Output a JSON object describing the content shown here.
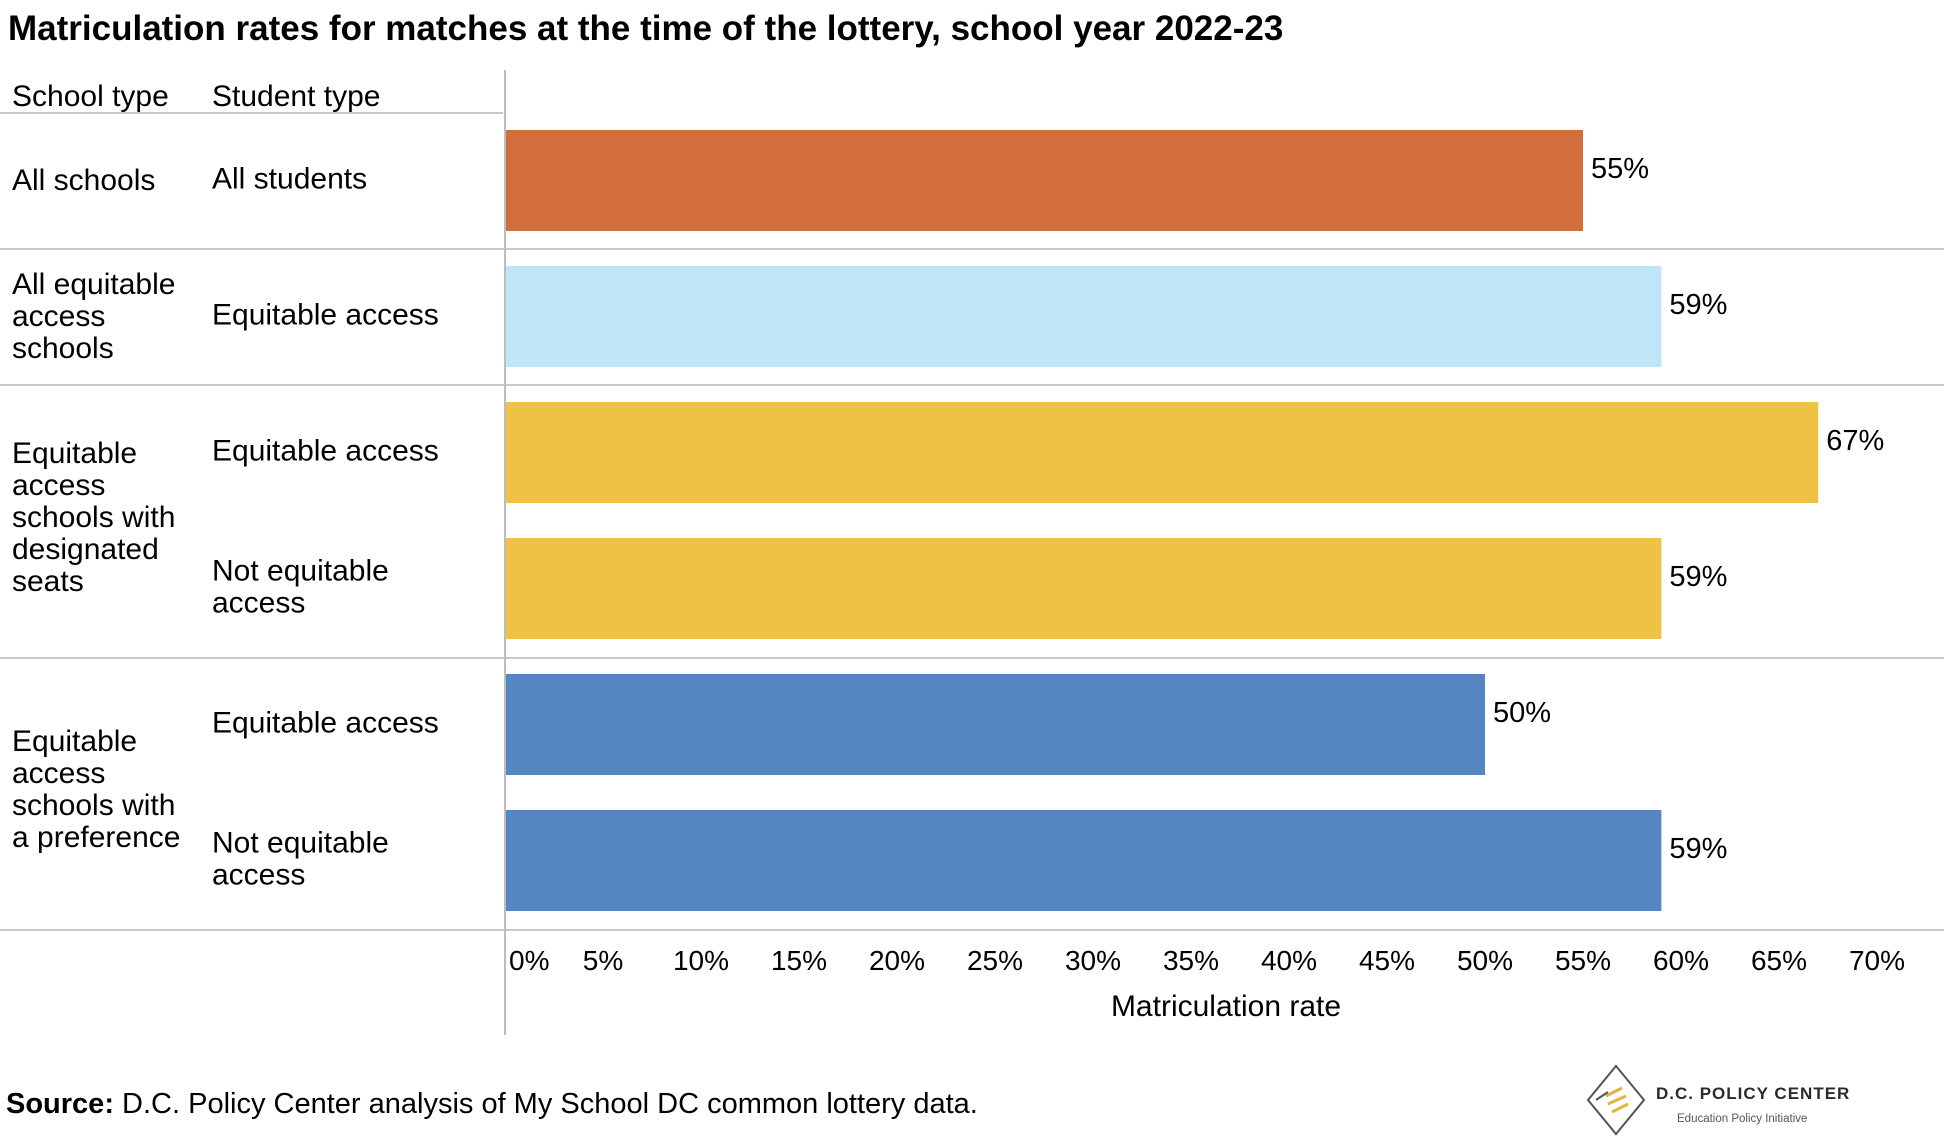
{
  "title": "Matriculation rates for matches at the time of the lottery, school year 2022-23",
  "headers": {
    "school_type": "School type",
    "student_type": "Student type"
  },
  "rows": [
    {
      "school_type": [
        "All schools"
      ],
      "student_type": [
        "All students"
      ]
    },
    {
      "school_type": [
        "All equitable",
        "access",
        "schools"
      ],
      "student_type": [
        "Equitable access"
      ]
    },
    {
      "school_type": [
        "Equitable",
        "access",
        "schools with",
        "designated",
        "seats"
      ],
      "student_type": [
        "Equitable access"
      ]
    },
    {
      "school_type": [],
      "student_type": [
        "Not equitable",
        "access"
      ]
    },
    {
      "school_type": [
        "Equitable",
        "access",
        "schools with",
        "a preference"
      ],
      "student_type": [
        "Equitable access"
      ]
    },
    {
      "school_type": [],
      "student_type": [
        "Not equitable",
        "access"
      ]
    }
  ],
  "chart_data": {
    "type": "bar",
    "orientation": "horizontal",
    "categories": [
      "All schools | All students",
      "All equitable access schools | Equitable access",
      "Equitable access schools with designated seats | Equitable access",
      "Equitable access schools with designated seats | Not equitable access",
      "Equitable access schools with a preference | Equitable access",
      "Equitable access schools with a preference | Not equitable access"
    ],
    "values": [
      55,
      59,
      67,
      59,
      50,
      59
    ],
    "data_labels": [
      "55%",
      "59%",
      "67%",
      "59%",
      "50%",
      "59%"
    ],
    "colors": [
      "#d16e3c",
      "#bee5f8",
      "#efc245",
      "#efc245",
      "#5487c1",
      "#5487c1"
    ],
    "xlabel": "Matriculation rate",
    "xlim": [
      0,
      70
    ],
    "xticks": [
      0,
      5,
      10,
      15,
      20,
      25,
      30,
      35,
      40,
      45,
      50,
      55,
      60,
      65,
      70
    ],
    "xtick_labels": [
      "0%",
      "5%",
      "10%",
      "15%",
      "20%",
      "25%",
      "30%",
      "35%",
      "40%",
      "45%",
      "50%",
      "55%",
      "60%",
      "65%",
      "70%"
    ],
    "grid": false,
    "legend": "none"
  },
  "source": {
    "label": "Source:",
    "text": " D.C. Policy Center analysis of My School DC common lottery data."
  },
  "logo": {
    "name": "D.C. POLICY CENTER",
    "subtitle": "Education Policy Initiative",
    "icon": "dc-map-icon"
  },
  "colors": {
    "separator": "#c8c8c8",
    "axis": "#bdbdbd"
  }
}
